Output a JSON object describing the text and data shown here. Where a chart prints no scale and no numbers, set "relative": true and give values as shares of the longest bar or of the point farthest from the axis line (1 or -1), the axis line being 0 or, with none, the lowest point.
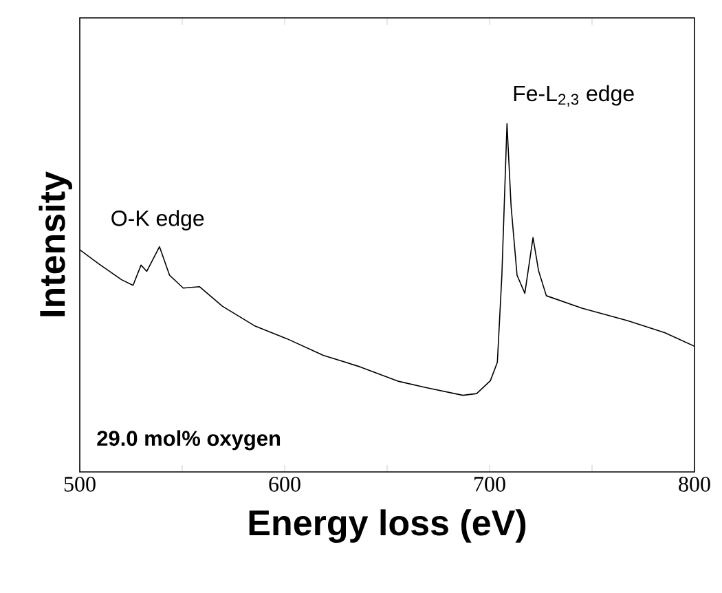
{
  "chart_data": {
    "type": "line",
    "relative": true,
    "xlabel": "Energy loss (eV)",
    "ylabel": "Intensity",
    "annotations": [
      "O-K edge",
      "Fe-L$_{2,3}$ edge",
      "29.0 mol% oxygen"
    ],
    "xlim": [
      500,
      800
    ],
    "xticks": [
      500,
      {
        "value": 550,
        "label": null
      },
      600,
      {
        "value": 650,
        "label": null
      },
      700,
      {
        "value": 750,
        "label": null
      },
      800
    ],
    "x": [
      500,
      509.2,
      520.4,
      526,
      529.9,
      532.7,
      538.9,
      543.8,
      550.5,
      558.4,
      569.6,
      585.2,
      600.9,
      618.8,
      636.7,
      655.7,
      669.1,
      687,
      693.7,
      700.4,
      703.8,
      706,
      708.5,
      710.5,
      713.4,
      717.2,
      721.2,
      723.9,
      727.7,
      745.1,
      767.5,
      785.4,
      800
    ],
    "values": [
      0.638,
      0.598,
      0.552,
      0.536,
      0.594,
      0.576,
      0.647,
      0.565,
      0.528,
      0.532,
      0.476,
      0.42,
      0.383,
      0.335,
      0.302,
      0.26,
      0.242,
      0.22,
      0.225,
      0.262,
      0.315,
      0.565,
      1.0,
      0.763,
      0.565,
      0.513,
      0.673,
      0.578,
      0.506,
      0.47,
      0.434,
      0.4,
      0.361
    ],
    "color": "#000000"
  }
}
